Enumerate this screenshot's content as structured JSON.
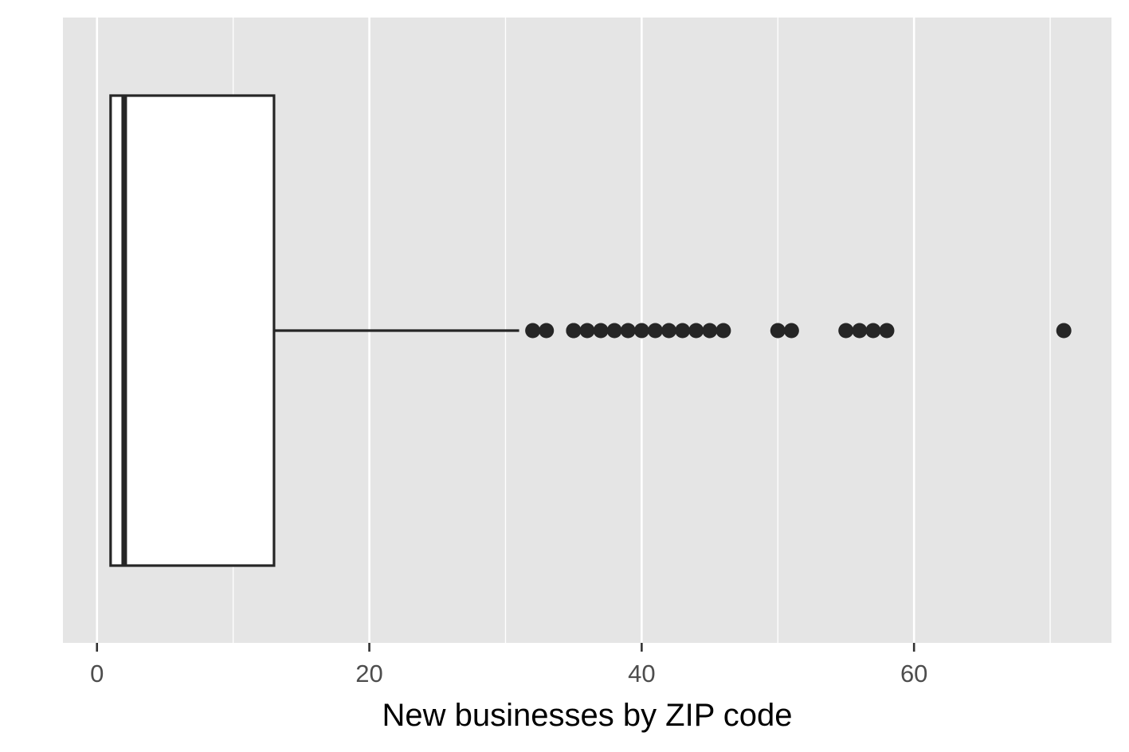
{
  "chart_data": {
    "type": "boxplot",
    "orientation": "horizontal",
    "xlabel": "New businesses by ZIP code",
    "ylabel": "",
    "xlim": [
      -2.5,
      74.5
    ],
    "x_ticks": [
      0,
      20,
      40,
      60
    ],
    "x_tick_labels": [
      "0",
      "20",
      "40",
      "60"
    ],
    "x_minor_gridlines": [
      10,
      30,
      50,
      70
    ],
    "grid": true,
    "box": {
      "min": 1,
      "q1": 1,
      "median": 2,
      "q3": 13,
      "whisker_low": 1,
      "whisker_high": 31
    },
    "outliers": [
      32,
      33,
      35,
      35,
      36,
      37,
      38,
      39,
      40,
      41,
      42,
      43,
      44,
      45,
      46,
      50,
      51,
      55,
      56,
      57,
      58,
      71
    ],
    "colors": {
      "panel_background": "#e5e5e5",
      "grid": "#ffffff",
      "box_fill": "#ffffff",
      "box_stroke": "#262626",
      "outlier": "#262626"
    }
  }
}
